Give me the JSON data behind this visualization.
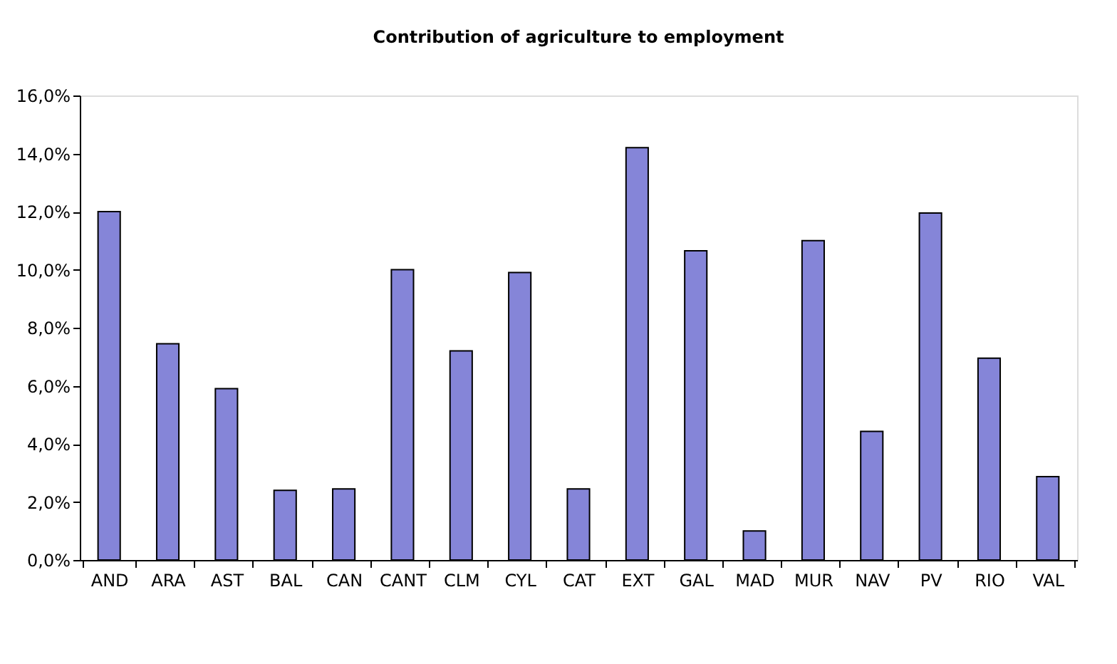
{
  "chart_data": {
    "type": "bar",
    "title": "Contribution of agriculture to employment",
    "categories": [
      "AND",
      "ARA",
      "AST",
      "BAL",
      "CAN",
      "CANT",
      "CLM",
      "CYL",
      "CAT",
      "EXT",
      "GAL",
      "MAD",
      "MUR",
      "NAV",
      "PV",
      "RIO",
      "VAL"
    ],
    "values": [
      12.0,
      7.45,
      5.9,
      2.4,
      2.45,
      10.0,
      7.2,
      9.9,
      2.45,
      14.2,
      10.65,
      1.0,
      11.0,
      4.43,
      11.95,
      6.95,
      2.87
    ],
    "color": "#8585d8",
    "ylim": [
      0,
      16
    ],
    "yticks": [
      {
        "value": 0,
        "label": "0,0%"
      },
      {
        "value": 2,
        "label": "2,0%"
      },
      {
        "value": 4,
        "label": "4,0%"
      },
      {
        "value": 6,
        "label": "6,0%"
      },
      {
        "value": 8,
        "label": "8,0%"
      },
      {
        "value": 10,
        "label": "10,0%"
      },
      {
        "value": 12,
        "label": "12,0%"
      },
      {
        "value": 14,
        "label": "14,0%"
      },
      {
        "value": 16,
        "label": "16,0%"
      }
    ],
    "grid": false
  }
}
